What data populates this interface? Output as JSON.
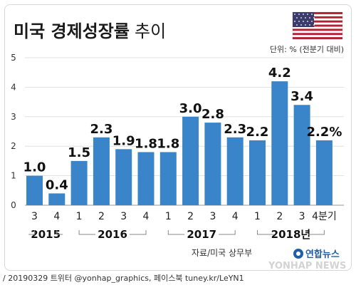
{
  "title_main": "미국 경제성장률",
  "title_sub": "추이",
  "unit_note": "단위: % (전분기 대비)",
  "source": "자료/미국 상무부",
  "logo_text": "연합뉴스",
  "watermark": "YONHAP NEWS",
  "credit": "/ 20190329 트위터 @yonhap_graphics, 페이스북 tuney.kr/LeYN1",
  "colors": {
    "bar": "#3a84c9",
    "title": "#1a1a1a",
    "grid": "#d9d9d9",
    "bracket": "#888888"
  },
  "chart_data": {
    "type": "bar",
    "quarters": [
      "3",
      "4",
      "1",
      "2",
      "3",
      "4",
      "1",
      "2",
      "3",
      "4",
      "1",
      "2",
      "3",
      "4분기"
    ],
    "years": [
      {
        "label": "2015",
        "start": 0,
        "end": 1
      },
      {
        "label": "2016",
        "start": 2,
        "end": 5
      },
      {
        "label": "2017",
        "start": 6,
        "end": 9
      },
      {
        "label": "2018년",
        "start": 10,
        "end": 13
      }
    ],
    "values": [
      1.0,
      0.4,
      1.5,
      2.3,
      1.9,
      1.8,
      1.8,
      3.0,
      2.8,
      2.3,
      2.2,
      4.2,
      3.4,
      2.2
    ],
    "value_labels": [
      "1.0",
      "0.4",
      "1.5",
      "2.3",
      "1.9",
      "1.8",
      "1.8",
      "3.0",
      "2.8",
      "2.3",
      "2.2",
      "4.2",
      "3.4",
      "2.2%"
    ],
    "yticks": [
      "0",
      "1",
      "2",
      "3",
      "4",
      "5"
    ],
    "ylim": [
      0,
      5
    ],
    "grid": true
  }
}
